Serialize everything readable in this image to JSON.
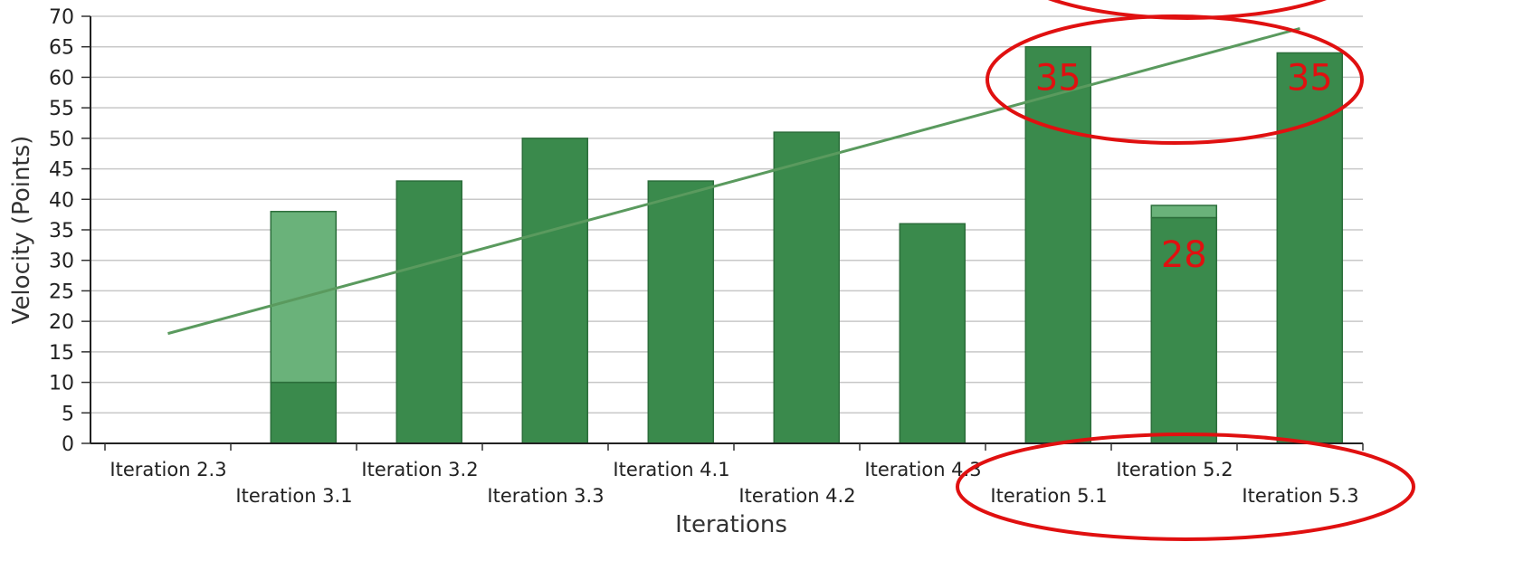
{
  "chart_data": {
    "type": "bar",
    "xlabel": "Iterations",
    "ylabel": "Velocity (Points)",
    "ylim": [
      0,
      70
    ],
    "yticks": [
      0,
      5,
      10,
      15,
      20,
      25,
      30,
      35,
      40,
      45,
      50,
      55,
      60,
      65,
      70
    ],
    "grid": true,
    "categories": [
      "Iteration 2.3",
      "Iteration 3.1",
      "Iteration 3.2",
      "Iteration 3.3",
      "Iteration 4.1",
      "Iteration 4.2",
      "Iteration 4.3",
      "Iteration 5.1",
      "Iteration 5.2",
      "Iteration 5.3"
    ],
    "series": [
      {
        "values": [
          0,
          10,
          43,
          50,
          43,
          51,
          36,
          65,
          37,
          64
        ]
      },
      {
        "values": [
          0,
          28,
          0,
          0,
          0,
          0,
          0,
          0,
          2,
          0
        ]
      }
    ],
    "trendline": {
      "from": 18,
      "to": 68
    },
    "colors": {
      "bar_dark": "#3a8a4c",
      "bar_light": "#6ab27a",
      "trend": "#5a9a5e",
      "grid": "#c8c8c8",
      "annotation": "#e01010"
    },
    "annotations": [
      {
        "text": "35",
        "category": "Iteration 5.1"
      },
      {
        "text": "35",
        "category": "Iteration 5.3"
      },
      {
        "text": "28",
        "category": "Iteration 5.2"
      }
    ]
  }
}
